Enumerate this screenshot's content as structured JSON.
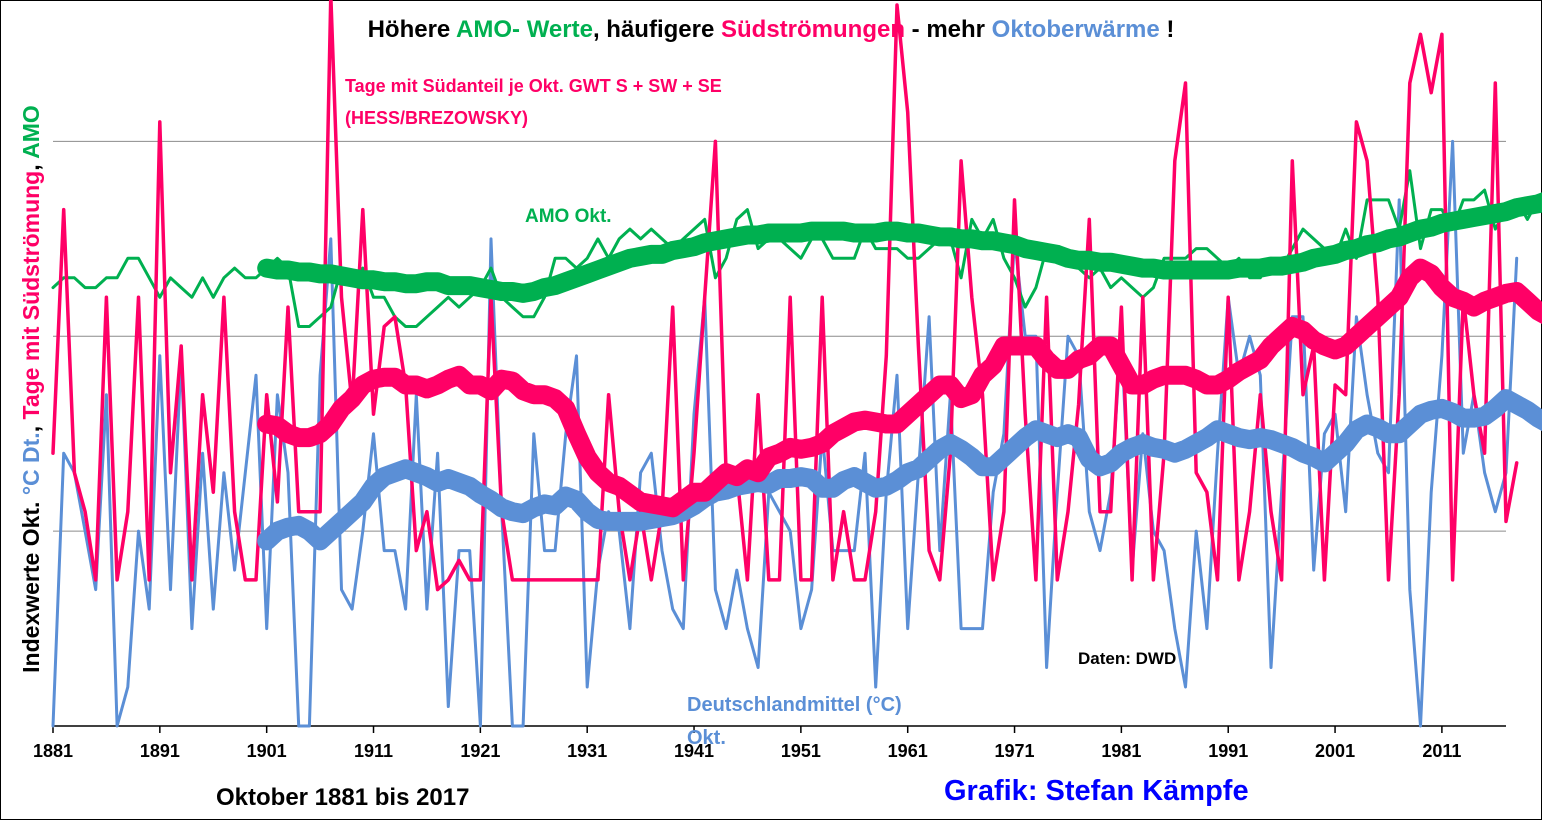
{
  "chart_data": {
    "type": "line",
    "title": {
      "parts": [
        {
          "text": "Höhere ",
          "color": "#000000"
        },
        {
          "text": "AMO- Werte",
          "color": "#00b050"
        },
        {
          "text": ", häufigere ",
          "color": "#000000"
        },
        {
          "text": "Südströmungen",
          "color": "#ff0066"
        },
        {
          "text": " - mehr ",
          "color": "#000000"
        },
        {
          "text": "Oktoberwärme",
          "color": "#5b8fd6"
        },
        {
          "text": " !",
          "color": "#000000"
        }
      ]
    },
    "ylabel": {
      "parts": [
        {
          "text": "Indexwerte Okt. ",
          "color": "#000000"
        },
        {
          "text": "°C Dt.",
          "color": "#5b8fd6"
        },
        {
          "text": ", ",
          "color": "#000000"
        },
        {
          "text": "Tage mit Südströmung",
          "color": "#ff0066"
        },
        {
          "text": ", ",
          "color": "#000000"
        },
        {
          "text": "AMO",
          "color": "#00b050"
        }
      ]
    },
    "xlabel": "Oktober 1881 bis 2017",
    "credit": "Grafik: Stefan Kämpfe",
    "source": "Daten: DWD",
    "x_ticks": [
      "1881",
      "1891",
      "1901",
      "1911",
      "1921",
      "1931",
      "1941",
      "1951",
      "1961",
      "1971",
      "1981",
      "1991",
      "2001",
      "2011"
    ],
    "xlim": [
      1881,
      2017
    ],
    "ylim": [
      0,
      35
    ],
    "y_gridlines": [
      10,
      20,
      30
    ],
    "grid": "horizontal",
    "annotations": {
      "south_label_line1": "Tage mit Südanteil je Okt. GWT S + SW + SE",
      "south_label_line2": "(HESS/BREZOWSKY)",
      "amo_label": "AMO Okt.",
      "temp_label_line1": "Deutschlandmittel (°C)",
      "temp_label_line2": "Okt."
    },
    "colors": {
      "south": "#ff0066",
      "temp": "#5b8fd6",
      "amo": "#00b050",
      "credit": "#0000ff"
    },
    "series": [
      {
        "name": "Tage mit Südanteil je Okt. GWT S + SW + SE (HESS/BREZOWSKY)",
        "key": "south",
        "x_start": 1881,
        "values": [
          14,
          26.5,
          13,
          11,
          7.5,
          22,
          7.5,
          11,
          22,
          7.5,
          31,
          13,
          19.5,
          7.5,
          17,
          12,
          22,
          11,
          7.5,
          7.5,
          17,
          11.5,
          21.5,
          11,
          11,
          11,
          37.5,
          22,
          16.5,
          26.5,
          16,
          20.5,
          21,
          17.5,
          9,
          11,
          7,
          7.5,
          8.5,
          7.5,
          7.5,
          22,
          11,
          7.5,
          7.5,
          7.5,
          7.5,
          7.5,
          7.5,
          7.5,
          7.5,
          7.5,
          17,
          11,
          7.5,
          11,
          7.5,
          11,
          21.5,
          7.5,
          14,
          22,
          30,
          13,
          13,
          7.5,
          17,
          7.5,
          7.5,
          22,
          7.5,
          7.5,
          22,
          7.5,
          11,
          7.5,
          7.5,
          11,
          19,
          37,
          31.5,
          19.5,
          9,
          7.5,
          14,
          29,
          22,
          17,
          7.5,
          11,
          27,
          16,
          7.5,
          22,
          7.5,
          11,
          16.5,
          26,
          11,
          11,
          21.5,
          7.5,
          22,
          7.5,
          14,
          29,
          33,
          13,
          12,
          7.5,
          22,
          7.5,
          11,
          17,
          11,
          7.5,
          29,
          17,
          19.5,
          7.5,
          17.5,
          17,
          31,
          29,
          22,
          7.5,
          17,
          33,
          35.5,
          32.5,
          35.5,
          7.5,
          22,
          17,
          14,
          33,
          10.5,
          13.5
        ]
      },
      {
        "name": "Deutschlandmittel (°C) Okt.",
        "key": "temp",
        "x_start": 1881,
        "values": [
          0,
          14,
          13,
          10,
          7,
          17,
          0,
          2,
          10,
          6,
          19,
          7,
          19,
          5,
          14,
          6,
          13,
          8,
          13,
          18,
          5,
          17,
          13,
          0,
          0,
          18,
          25,
          7,
          6,
          10,
          15,
          9,
          9,
          6,
          17,
          6,
          14,
          1,
          9,
          9,
          0,
          25,
          11,
          0,
          0,
          15,
          9,
          9,
          15,
          19,
          2,
          8,
          11,
          10,
          5,
          13,
          14,
          9,
          6,
          5,
          16,
          22,
          7,
          5,
          8,
          5,
          3,
          12,
          11,
          10,
          5,
          7,
          15,
          9,
          9,
          9,
          14,
          2,
          12,
          18,
          5,
          13,
          21,
          9,
          17,
          5,
          5,
          5,
          12,
          15,
          25,
          20,
          20,
          3,
          12,
          20,
          19,
          11,
          9,
          12,
          20,
          8,
          15,
          10,
          9,
          5,
          2,
          10,
          5,
          14,
          22,
          18,
          20,
          18,
          3,
          12,
          21,
          21,
          8,
          15,
          16,
          11,
          21,
          17,
          14,
          13,
          27,
          7,
          0,
          12,
          19,
          30,
          14,
          17,
          13,
          11,
          13,
          24
        ]
      },
      {
        "name": "AMO Okt.",
        "key": "amo",
        "x_start": 1881,
        "values": [
          22.5,
          23,
          23,
          22.5,
          22.5,
          23,
          23,
          24,
          24,
          23,
          22,
          23,
          22.5,
          22,
          23,
          22,
          23,
          23.5,
          23,
          23,
          23.5,
          24,
          23.5,
          20.5,
          20.5,
          21,
          21.5,
          23.5,
          23,
          23.5,
          22,
          22,
          21,
          20.5,
          20.5,
          21,
          21.5,
          22,
          21.5,
          22,
          22.5,
          23.5,
          22,
          21.5,
          21,
          21,
          22,
          24,
          24,
          23.5,
          24,
          25,
          24,
          25,
          25.5,
          25,
          25.5,
          25,
          24.5,
          25,
          25.5,
          26,
          23,
          24,
          26,
          26.5,
          24.5,
          25,
          25,
          24.5,
          24,
          25,
          25,
          24,
          24,
          24,
          25.5,
          24.5,
          24.5,
          24.5,
          24,
          24,
          24.5,
          25,
          25,
          23,
          26,
          25,
          26,
          24,
          23,
          21.5,
          22.5,
          24.5,
          24.5,
          24,
          23.5,
          23,
          23.5,
          22.5,
          23,
          22.5,
          22,
          22.5,
          24,
          24,
          24,
          24.5,
          24.5,
          24,
          23.5,
          24,
          23,
          23,
          24,
          23.5,
          24.5,
          25.5,
          25,
          24.5,
          24,
          25.5,
          24,
          27,
          27,
          27,
          25.5,
          28.5,
          24.5,
          26.5,
          26.5,
          25.5,
          27,
          27,
          27.5,
          25.5,
          26.5,
          27,
          26,
          27,
          26.5,
          27.5,
          27.5,
          27.5,
          28,
          28.5
        ]
      },
      {
        "name": "AMO Okt. (Trend)",
        "key": "amo_trend",
        "x_start": 1901,
        "values": [
          23.5,
          23.4,
          23.4,
          23.3,
          23.3,
          23.2,
          23.2,
          23.1,
          23,
          22.9,
          22.9,
          22.8,
          22.8,
          22.7,
          22.7,
          22.8,
          22.8,
          22.6,
          22.6,
          22.6,
          22.5,
          22.4,
          22.3,
          22.3,
          22.2,
          22.3,
          22.5,
          22.6,
          22.8,
          23,
          23.2,
          23.4,
          23.6,
          23.8,
          24,
          24.1,
          24.2,
          24.2,
          24.4,
          24.5,
          24.6,
          24.8,
          24.9,
          25,
          25.1,
          25.2,
          25.2,
          25.3,
          25.3,
          25.3,
          25.3,
          25.4,
          25.4,
          25.4,
          25.4,
          25.3,
          25.3,
          25.3,
          25.4,
          25.4,
          25.3,
          25.3,
          25.2,
          25.1,
          25.1,
          25,
          25,
          24.9,
          24.9,
          24.8,
          24.7,
          24.5,
          24.4,
          24.3,
          24.2,
          24,
          23.9,
          23.9,
          23.8,
          23.8,
          23.7,
          23.6,
          23.5,
          23.5,
          23.4,
          23.4,
          23.4,
          23.4,
          23.4,
          23.4,
          23.4,
          23.5,
          23.5,
          23.5,
          23.6,
          23.6,
          23.7,
          23.8,
          24,
          24.1,
          24.2,
          24.4,
          24.5,
          24.7,
          24.8,
          25,
          25.1,
          25.3,
          25.5,
          25.6,
          25.8,
          25.9,
          26,
          26.1,
          26.2,
          26.3,
          26.4,
          26.6,
          26.7,
          26.8,
          27
        ]
      },
      {
        "name": "Tage mit Südanteil je Okt. (Trend)",
        "key": "south_trend",
        "x_start": 1901,
        "values": [
          15.5,
          15.4,
          15,
          14.8,
          14.8,
          15,
          15.5,
          16.3,
          16.8,
          17.5,
          17.8,
          17.9,
          17.9,
          17.5,
          17.5,
          17.3,
          17.5,
          17.8,
          18,
          17.5,
          17.5,
          17.2,
          17.8,
          17.7,
          17.2,
          17,
          17,
          16.8,
          16.3,
          15,
          13.8,
          13,
          12.5,
          12.3,
          11.9,
          11.5,
          11.4,
          11.3,
          11.2,
          11.6,
          12,
          12,
          12.5,
          13,
          12.8,
          13.2,
          13,
          13.8,
          14,
          14.3,
          14.2,
          14.3,
          14.5,
          15,
          15.3,
          15.6,
          15.7,
          15.6,
          15.5,
          15.5,
          16,
          16.5,
          17,
          17.5,
          17.5,
          16.8,
          17,
          18,
          18.5,
          19.5,
          19.5,
          19.5,
          19.5,
          18.8,
          18.3,
          18.3,
          18.8,
          19,
          19.5,
          19.5,
          18.5,
          17.5,
          17.5,
          17.8,
          18,
          18,
          18,
          17.8,
          17.5,
          17.5,
          17.8,
          18.2,
          18.5,
          18.8,
          19.5,
          20,
          20.5,
          20.3,
          19.8,
          19.5,
          19.3,
          19.5,
          20,
          20.5,
          21,
          21.5,
          22,
          23,
          23.5,
          23.2,
          22.5,
          22,
          21.8,
          21.5,
          21.8,
          22,
          22.2,
          22.3,
          21.8,
          21.3,
          21,
          20.8
        ]
      },
      {
        "name": "Deutschlandmittel (°C) Okt. (Trend)",
        "key": "temp_trend",
        "x_start": 1901,
        "values": [
          9.5,
          10,
          10.2,
          10.3,
          10,
          9.5,
          10,
          10.5,
          11,
          11.5,
          12.3,
          12.8,
          13,
          13.2,
          13,
          12.8,
          12.5,
          12.7,
          12.5,
          12.3,
          11.9,
          11.6,
          11.2,
          11,
          10.9,
          11.2,
          11.4,
          11.3,
          11.8,
          11.6,
          11,
          10.6,
          10.5,
          10.5,
          10.5,
          10.5,
          10.6,
          10.7,
          10.8,
          11,
          11.3,
          11.7,
          12,
          12.1,
          12.3,
          12.4,
          12.5,
          12.4,
          12.7,
          12.7,
          12.8,
          12.7,
          12.2,
          12.2,
          12.6,
          12.8,
          12.5,
          12.2,
          12.3,
          12.6,
          13,
          13.2,
          13.7,
          14.2,
          14.5,
          14.2,
          13.8,
          13.3,
          13.3,
          13.8,
          14.3,
          14.8,
          15.2,
          15,
          14.8,
          15,
          14.8,
          13.7,
          13.3,
          13.5,
          14,
          14.3,
          14.5,
          14.3,
          14.2,
          14,
          14.2,
          14.5,
          14.8,
          15.2,
          15,
          14.8,
          14.7,
          14.8,
          14.7,
          14.5,
          14.3,
          14,
          13.8,
          13.5,
          14,
          14.5,
          15.2,
          15.5,
          15.3,
          15,
          15,
          15.5,
          16,
          16.2,
          16.3,
          16.1,
          15.8,
          15.8,
          15.9,
          16.3,
          16.8,
          16.5,
          16.2,
          15.8,
          15.5,
          15.8,
          16.2,
          16.8,
          17.2,
          17.1,
          16.8,
          16.5,
          16.7
        ]
      }
    ]
  }
}
